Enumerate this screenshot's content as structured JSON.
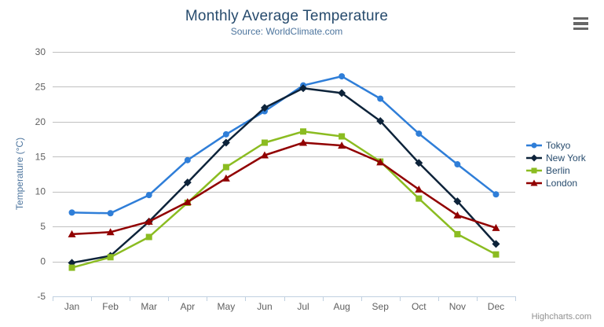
{
  "chart_data": {
    "type": "line",
    "title": "Monthly Average Temperature",
    "subtitle": "Source: WorldClimate.com",
    "categories": [
      "Jan",
      "Feb",
      "Mar",
      "Apr",
      "May",
      "Jun",
      "Jul",
      "Aug",
      "Sep",
      "Oct",
      "Nov",
      "Dec"
    ],
    "series": [
      {
        "name": "Tokyo",
        "color": "#2f7ed8",
        "marker": "circle",
        "values": [
          7.0,
          6.9,
          9.5,
          14.5,
          18.2,
          21.5,
          25.2,
          26.5,
          23.3,
          18.3,
          13.9,
          9.6
        ]
      },
      {
        "name": "New York",
        "color": "#0d233a",
        "marker": "diamond",
        "values": [
          -0.2,
          0.8,
          5.7,
          11.3,
          17.0,
          22.0,
          24.8,
          24.1,
          20.1,
          14.1,
          8.6,
          2.5
        ]
      },
      {
        "name": "Berlin",
        "color": "#8bbc21",
        "marker": "square",
        "values": [
          -0.9,
          0.6,
          3.5,
          8.4,
          13.5,
          17.0,
          18.6,
          17.9,
          14.3,
          9.0,
          3.9,
          1.0
        ]
      },
      {
        "name": "London",
        "color": "#910000",
        "marker": "triangle",
        "values": [
          3.9,
          4.2,
          5.7,
          8.5,
          11.9,
          15.2,
          17.0,
          16.6,
          14.2,
          10.3,
          6.6,
          4.8
        ]
      }
    ],
    "xlabel": "",
    "ylabel": "Temperature (°C)",
    "ylim": [
      -5,
      30
    ],
    "ytick_interval": 5,
    "grid": true,
    "legend_position": "right"
  },
  "credits": {
    "text": "Highcharts.com"
  },
  "colors": {
    "background": "#ffffff",
    "title": "#274b6d",
    "subtitle": "#4d759e",
    "axis_title": "#4d759e",
    "tick_label": "#606060",
    "gridline": "#c0c0c0",
    "axis_line": "#c0d0e0",
    "legend_text": "#274b6d",
    "credits_text": "#909090",
    "menu_icon": "#666666"
  }
}
